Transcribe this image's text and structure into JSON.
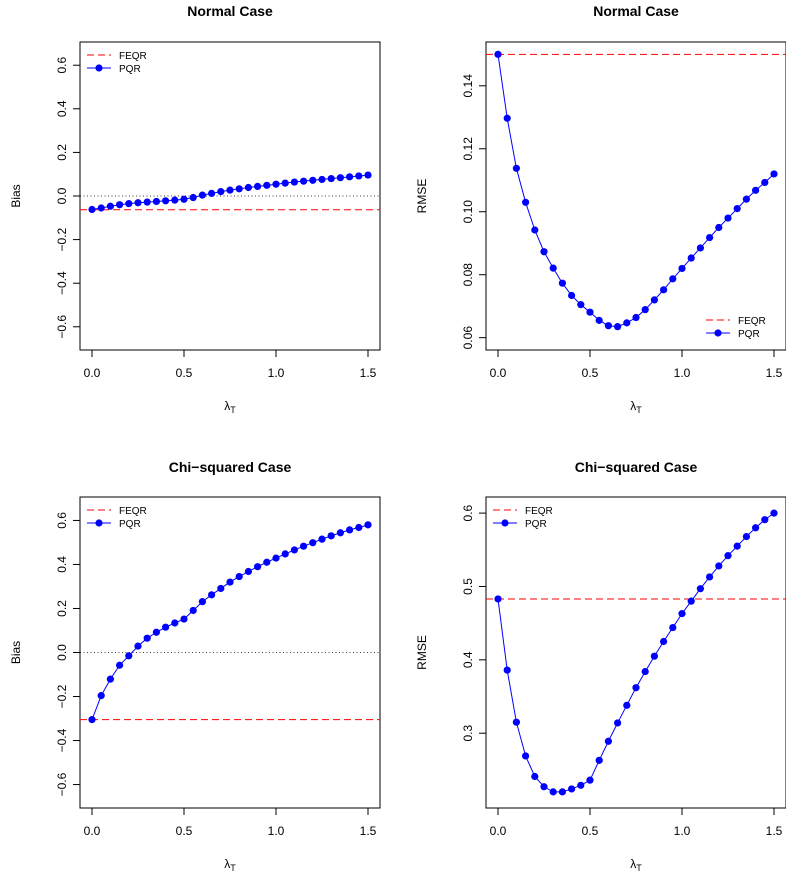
{
  "chart_data": [
    {
      "type": "line",
      "title": "Normal Case",
      "xlabel": "λ",
      "xlabel_sub": "T",
      "ylabel": "Bias",
      "xlim": [
        0,
        1.5
      ],
      "ylim": [
        -0.65,
        0.65
      ],
      "xticks": [
        0.0,
        0.5,
        1.0,
        1.5
      ],
      "xtick_labels": [
        "0.0",
        "0.5",
        "1.0",
        "1.5"
      ],
      "yticks": [
        -0.6,
        -0.4,
        -0.2,
        0.0,
        0.2,
        0.4,
        0.6
      ],
      "ytick_labels": [
        "−0.6",
        "−0.4",
        "−0.2",
        "0.0",
        "0.2",
        "0.4",
        "0.6"
      ],
      "legend_position": "top-left",
      "zero_line": true,
      "hline": {
        "name": "FEQR",
        "value": -0.063,
        "color": "#ff0000"
      },
      "series": [
        {
          "name": "PQR",
          "color": "#0000ff",
          "x": [
            0.0,
            0.05,
            0.1,
            0.15,
            0.2,
            0.25,
            0.3,
            0.35,
            0.4,
            0.45,
            0.5,
            0.55,
            0.6,
            0.65,
            0.7,
            0.75,
            0.8,
            0.85,
            0.9,
            0.95,
            1.0,
            1.05,
            1.1,
            1.15,
            1.2,
            1.25,
            1.3,
            1.35,
            1.4,
            1.45,
            1.5
          ],
          "y": [
            -0.062,
            -0.055,
            -0.047,
            -0.04,
            -0.035,
            -0.031,
            -0.028,
            -0.025,
            -0.022,
            -0.019,
            -0.015,
            -0.007,
            0.004,
            0.012,
            0.02,
            0.027,
            0.033,
            0.039,
            0.044,
            0.049,
            0.054,
            0.059,
            0.064,
            0.068,
            0.072,
            0.076,
            0.08,
            0.084,
            0.088,
            0.092,
            0.096
          ]
        }
      ]
    },
    {
      "type": "line",
      "title": "Normal Case",
      "xlabel": "λ",
      "xlabel_sub": "T",
      "ylabel": "RMSE",
      "xlim": [
        0,
        1.5
      ],
      "ylim": [
        0.06,
        0.15
      ],
      "xticks": [
        0.0,
        0.5,
        1.0,
        1.5
      ],
      "xtick_labels": [
        "0.0",
        "0.5",
        "1.0",
        "1.5"
      ],
      "yticks": [
        0.06,
        0.08,
        0.1,
        0.12,
        0.14
      ],
      "ytick_labels": [
        "0.06",
        "0.08",
        "0.10",
        "0.12",
        "0.14"
      ],
      "legend_position": "bottom-right",
      "zero_line": false,
      "hline": {
        "name": "FEQR",
        "value": 0.15,
        "color": "#ff0000"
      },
      "series": [
        {
          "name": "PQR",
          "color": "#0000ff",
          "x": [
            0.0,
            0.05,
            0.1,
            0.15,
            0.2,
            0.25,
            0.3,
            0.35,
            0.4,
            0.45,
            0.5,
            0.55,
            0.6,
            0.65,
            0.7,
            0.75,
            0.8,
            0.85,
            0.9,
            0.95,
            1.0,
            1.05,
            1.1,
            1.15,
            1.2,
            1.25,
            1.3,
            1.35,
            1.4,
            1.45,
            1.5
          ],
          "y": [
            0.15,
            0.1297,
            0.1138,
            0.103,
            0.0942,
            0.0873,
            0.0821,
            0.0773,
            0.0734,
            0.0705,
            0.0681,
            0.0655,
            0.0638,
            0.0635,
            0.0647,
            0.0664,
            0.0689,
            0.072,
            0.0752,
            0.0787,
            0.082,
            0.0853,
            0.0885,
            0.0918,
            0.095,
            0.098,
            0.101,
            0.104,
            0.1068,
            0.1093,
            0.112
          ]
        }
      ]
    },
    {
      "type": "line",
      "title": "Chi−squared Case",
      "xlabel": "λ",
      "xlabel_sub": "T",
      "ylabel": "Bias",
      "xlim": [
        0,
        1.5
      ],
      "ylim": [
        -0.65,
        0.65
      ],
      "xticks": [
        0.0,
        0.5,
        1.0,
        1.5
      ],
      "xtick_labels": [
        "0.0",
        "0.5",
        "1.0",
        "1.5"
      ],
      "yticks": [
        -0.6,
        -0.4,
        -0.2,
        0.0,
        0.2,
        0.4,
        0.6
      ],
      "ytick_labels": [
        "−0.6",
        "−0.4",
        "−0.2",
        "0.0",
        "0.2",
        "0.4",
        "0.6"
      ],
      "legend_position": "top-left",
      "zero_line": true,
      "hline": {
        "name": "FEQR",
        "value": -0.305,
        "color": "#ff0000"
      },
      "series": [
        {
          "name": "PQR",
          "color": "#0000ff",
          "x": [
            0.0,
            0.05,
            0.1,
            0.15,
            0.2,
            0.25,
            0.3,
            0.35,
            0.4,
            0.45,
            0.5,
            0.55,
            0.6,
            0.65,
            0.7,
            0.75,
            0.8,
            0.85,
            0.9,
            0.95,
            1.0,
            1.05,
            1.1,
            1.15,
            1.2,
            1.25,
            1.3,
            1.35,
            1.4,
            1.45,
            1.5
          ],
          "y": [
            -0.305,
            -0.196,
            -0.121,
            -0.058,
            -0.015,
            0.029,
            0.065,
            0.092,
            0.115,
            0.134,
            0.152,
            0.191,
            0.231,
            0.262,
            0.291,
            0.32,
            0.345,
            0.368,
            0.39,
            0.41,
            0.429,
            0.448,
            0.466,
            0.483,
            0.499,
            0.515,
            0.53,
            0.544,
            0.557,
            0.568,
            0.58
          ]
        }
      ]
    },
    {
      "type": "line",
      "title": "Chi−squared Case",
      "xlabel": "λ",
      "xlabel_sub": "T",
      "ylabel": "RMSE",
      "xlim": [
        0,
        1.5
      ],
      "ylim": [
        0.215,
        0.605
      ],
      "xticks": [
        0.0,
        0.5,
        1.0,
        1.5
      ],
      "xtick_labels": [
        "0.0",
        "0.5",
        "1.0",
        "1.5"
      ],
      "yticks": [
        0.3,
        0.4,
        0.5,
        0.6
      ],
      "ytick_labels": [
        "0.3",
        "0.4",
        "0.5",
        "0.6"
      ],
      "legend_position": "top-left",
      "zero_line": false,
      "hline": {
        "name": "FEQR",
        "value": 0.483,
        "color": "#ff0000"
      },
      "series": [
        {
          "name": "PQR",
          "color": "#0000ff",
          "x": [
            0.0,
            0.05,
            0.1,
            0.15,
            0.2,
            0.25,
            0.3,
            0.35,
            0.4,
            0.45,
            0.5,
            0.55,
            0.6,
            0.65,
            0.7,
            0.75,
            0.8,
            0.85,
            0.9,
            0.95,
            1.0,
            1.05,
            1.1,
            1.15,
            1.2,
            1.25,
            1.3,
            1.35,
            1.4,
            1.45,
            1.5
          ],
          "y": [
            0.483,
            0.386,
            0.315,
            0.269,
            0.241,
            0.227,
            0.22,
            0.22,
            0.224,
            0.229,
            0.236,
            0.263,
            0.289,
            0.314,
            0.338,
            0.362,
            0.384,
            0.405,
            0.425,
            0.444,
            0.463,
            0.48,
            0.497,
            0.513,
            0.528,
            0.542,
            0.555,
            0.568,
            0.58,
            0.591,
            0.6
          ]
        }
      ]
    }
  ]
}
